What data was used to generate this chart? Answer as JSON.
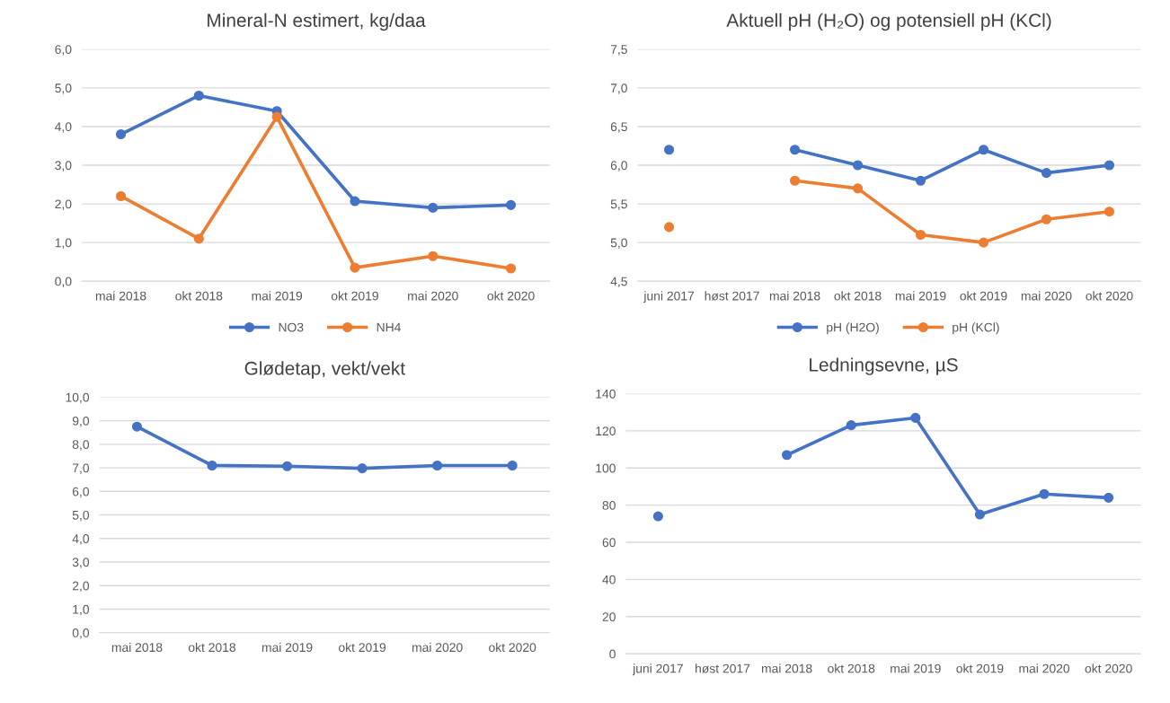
{
  "chart_data": [
    {
      "type": "line",
      "title": "Mineral-N estimert, kg/daa",
      "categories": [
        "mai 2018",
        "okt 2018",
        "mai 2019",
        "okt 2019",
        "mai 2020",
        "okt 2020"
      ],
      "series": [
        {
          "name": "NO3",
          "color": "#4472c4",
          "values": [
            3.8,
            4.8,
            4.4,
            2.07,
            1.9,
            1.97
          ]
        },
        {
          "name": "NH4",
          "color": "#ed7d31",
          "values": [
            2.2,
            1.1,
            4.25,
            0.35,
            0.65,
            0.33
          ]
        }
      ],
      "ylim": [
        0,
        6
      ],
      "yticks": [
        {
          "value": 0,
          "label": "0,0"
        },
        {
          "value": 1,
          "label": "1,0"
        },
        {
          "value": 2,
          "label": "2,0"
        },
        {
          "value": 3,
          "label": "3,0"
        },
        {
          "value": 4,
          "label": "4,0"
        },
        {
          "value": 5,
          "label": "5,0"
        },
        {
          "value": 6,
          "label": "6,0"
        }
      ],
      "grid": "y",
      "legend": "bottom",
      "marker": "circle",
      "line_style": "solid"
    },
    {
      "type": "line",
      "title": "Aktuell pH (H₂O) og potensiell pH (KCl)",
      "categories": [
        "juni 2017",
        "høst 2017",
        "mai 2018",
        "okt 2018",
        "mai 2019",
        "okt 2019",
        "mai 2020",
        "okt 2020"
      ],
      "series": [
        {
          "name": "pH (H2O)",
          "color": "#4472c4",
          "values": [
            6.2,
            null,
            6.2,
            6.0,
            5.8,
            6.2,
            5.9,
            6.0
          ]
        },
        {
          "name": "pH (KCl)",
          "color": "#ed7d31",
          "values": [
            5.2,
            null,
            5.8,
            5.7,
            5.1,
            5.0,
            5.3,
            5.4
          ]
        }
      ],
      "ylim": [
        4.5,
        7.5
      ],
      "yticks": [
        {
          "value": 4.5,
          "label": "4,5"
        },
        {
          "value": 5,
          "label": "5,0"
        },
        {
          "value": 5.5,
          "label": "5,5"
        },
        {
          "value": 6,
          "label": "6,0"
        },
        {
          "value": 6.5,
          "label": "6,5"
        },
        {
          "value": 7,
          "label": "7,0"
        },
        {
          "value": 7.5,
          "label": "7,5"
        }
      ],
      "grid": "y",
      "legend": "bottom",
      "marker": "circle",
      "line_style": "solid"
    },
    {
      "type": "line",
      "title": "Glødetap, vekt/vekt",
      "categories": [
        "mai 2018",
        "okt 2018",
        "mai 2019",
        "okt 2019",
        "mai 2020",
        "okt 2020"
      ],
      "series": [
        {
          "color": "#4472c4",
          "values": [
            8.75,
            7.1,
            7.07,
            6.98,
            7.1,
            7.1
          ]
        }
      ],
      "ylim": [
        0,
        10
      ],
      "yticks": [
        {
          "value": 0,
          "label": "0,0"
        },
        {
          "value": 1,
          "label": "1,0"
        },
        {
          "value": 2,
          "label": "2,0"
        },
        {
          "value": 3,
          "label": "3,0"
        },
        {
          "value": 4,
          "label": "4,0"
        },
        {
          "value": 5,
          "label": "5,0"
        },
        {
          "value": 6,
          "label": "6,0"
        },
        {
          "value": 7,
          "label": "7,0"
        },
        {
          "value": 8,
          "label": "8,0"
        },
        {
          "value": 9,
          "label": "9,0"
        },
        {
          "value": 10,
          "label": "10,0"
        }
      ],
      "grid": "y",
      "marker": "circle",
      "line_style": "solid"
    },
    {
      "type": "line",
      "title": "Ledningsevne, µS",
      "categories": [
        "juni 2017",
        "høst 2017",
        "mai 2018",
        "okt 2018",
        "mai 2019",
        "okt 2019",
        "mai 2020",
        "okt 2020"
      ],
      "series": [
        {
          "color": "#4472c4",
          "values": [
            74,
            null,
            107,
            123,
            127,
            75,
            86,
            84
          ]
        }
      ],
      "ylim": [
        0,
        140
      ],
      "yticks": [
        0,
        20,
        40,
        60,
        80,
        100,
        120,
        140
      ],
      "grid": "y",
      "marker": "circle",
      "line_style": "solid"
    }
  ]
}
